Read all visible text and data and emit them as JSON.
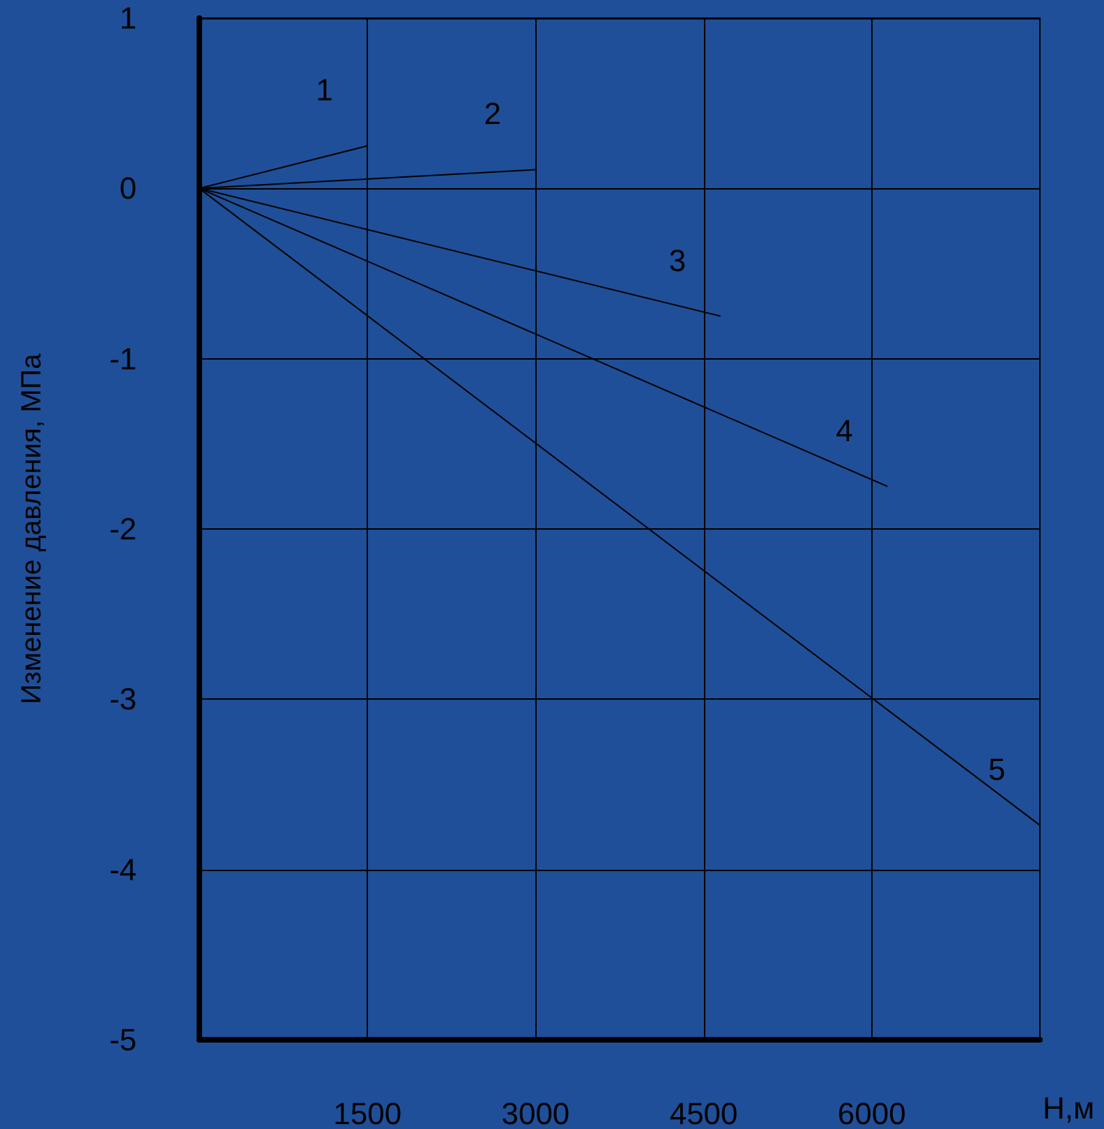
{
  "chart_data": {
    "type": "line",
    "xlabel": "H,м",
    "ylabel": "Изменение давления, МПа",
    "xlim": [
      0,
      7500
    ],
    "ylim": [
      -5,
      1
    ],
    "xticks": [
      1500,
      3000,
      4500,
      6000
    ],
    "yticks": [
      -5,
      -4,
      -3,
      -2,
      -1,
      0,
      1
    ],
    "grid": true,
    "legend": false,
    "marker": "none",
    "line_style": "solid",
    "series": [
      {
        "name": "1",
        "color": "#000000",
        "x": [
          0,
          1500
        ],
        "values": [
          0,
          0.25
        ]
      },
      {
        "name": "2",
        "color": "#000000",
        "x": [
          0,
          3000
        ],
        "values": [
          0,
          0.11
        ]
      },
      {
        "name": "3",
        "color": "#000000",
        "x": [
          0,
          4650
        ],
        "values": [
          0,
          -0.75
        ]
      },
      {
        "name": "4",
        "color": "#000000",
        "x": [
          0,
          6140
        ],
        "values": [
          0,
          -1.75
        ]
      },
      {
        "name": "5",
        "color": "#000000",
        "x": [
          0,
          7500
        ],
        "values": [
          0,
          -3.74
        ]
      }
    ]
  }
}
